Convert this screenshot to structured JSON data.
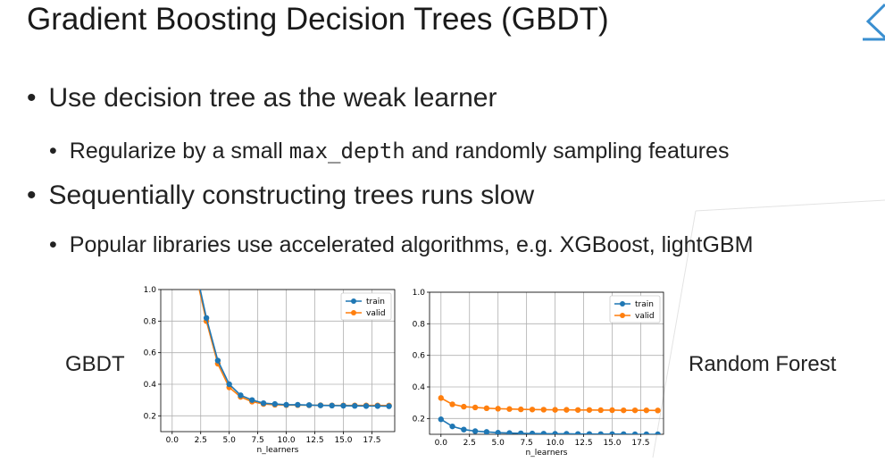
{
  "slide": {
    "title": "Gradient Boosting Decision Trees (GBDT)",
    "bullets": [
      {
        "level": 1,
        "text": "Use decision tree as the weak learner"
      },
      {
        "level": 2,
        "parts": [
          "Regularize by a small ",
          "max_depth",
          " and randomly sampling features"
        ]
      },
      {
        "level": 1,
        "text": "Sequentially constructing trees runs slow"
      },
      {
        "level": 2,
        "text": "Popular libraries use accelerated algorithms, e.g. XGBoost, lightGBM"
      }
    ],
    "bullet_glyph": "•",
    "left_label": "GBDT",
    "right_label": "Random Forest"
  },
  "colors": {
    "train": "#1f77b4",
    "valid": "#ff7f0e",
    "grid": "#b0b0b0"
  },
  "chart_data": [
    {
      "type": "line",
      "name": "GBDT",
      "xlabel": "n_learners",
      "ylabel": "",
      "xlim": [
        -1,
        19.5
      ],
      "ylim": [
        0.1,
        1.0
      ],
      "xticks": [
        0.0,
        2.5,
        5.0,
        7.5,
        10.0,
        12.5,
        15.0,
        17.5
      ],
      "yticks": [
        0.2,
        0.4,
        0.6,
        0.8,
        1.0
      ],
      "grid": true,
      "legend": "top-right",
      "x": [
        2,
        3,
        4,
        5,
        6,
        7,
        8,
        9,
        10,
        11,
        12,
        13,
        14,
        15,
        16,
        17,
        18,
        19
      ],
      "series": [
        {
          "name": "train",
          "values": [
            1.15,
            0.82,
            0.55,
            0.4,
            0.33,
            0.3,
            0.28,
            0.275,
            0.27,
            0.27,
            0.268,
            0.266,
            0.265,
            0.264,
            0.263,
            0.262,
            0.262,
            0.261
          ]
        },
        {
          "name": "valid",
          "values": [
            1.12,
            0.8,
            0.53,
            0.38,
            0.32,
            0.29,
            0.275,
            0.27,
            0.268,
            0.268,
            0.267,
            0.267,
            0.266,
            0.266,
            0.266,
            0.266,
            0.266,
            0.265
          ]
        }
      ]
    },
    {
      "type": "line",
      "name": "Random Forest",
      "xlabel": "n_learners",
      "ylabel": "",
      "xlim": [
        -1,
        19.5
      ],
      "ylim": [
        0.1,
        1.0
      ],
      "xticks": [
        0.0,
        2.5,
        5.0,
        7.5,
        10.0,
        12.5,
        15.0,
        17.5
      ],
      "yticks": [
        0.2,
        0.4,
        0.6,
        0.8,
        1.0
      ],
      "grid": true,
      "legend": "top-right",
      "x": [
        0,
        1,
        2,
        3,
        4,
        5,
        6,
        7,
        8,
        9,
        10,
        11,
        12,
        13,
        14,
        15,
        16,
        17,
        18,
        19
      ],
      "series": [
        {
          "name": "train",
          "values": [
            0.195,
            0.15,
            0.13,
            0.12,
            0.115,
            0.11,
            0.108,
            0.106,
            0.105,
            0.104,
            0.103,
            0.103,
            0.102,
            0.102,
            0.101,
            0.101,
            0.101,
            0.1,
            0.1,
            0.1
          ]
        },
        {
          "name": "valid",
          "values": [
            0.33,
            0.29,
            0.275,
            0.27,
            0.265,
            0.262,
            0.26,
            0.258,
            0.257,
            0.256,
            0.255,
            0.255,
            0.254,
            0.254,
            0.253,
            0.253,
            0.252,
            0.252,
            0.252,
            0.251
          ]
        }
      ]
    }
  ]
}
